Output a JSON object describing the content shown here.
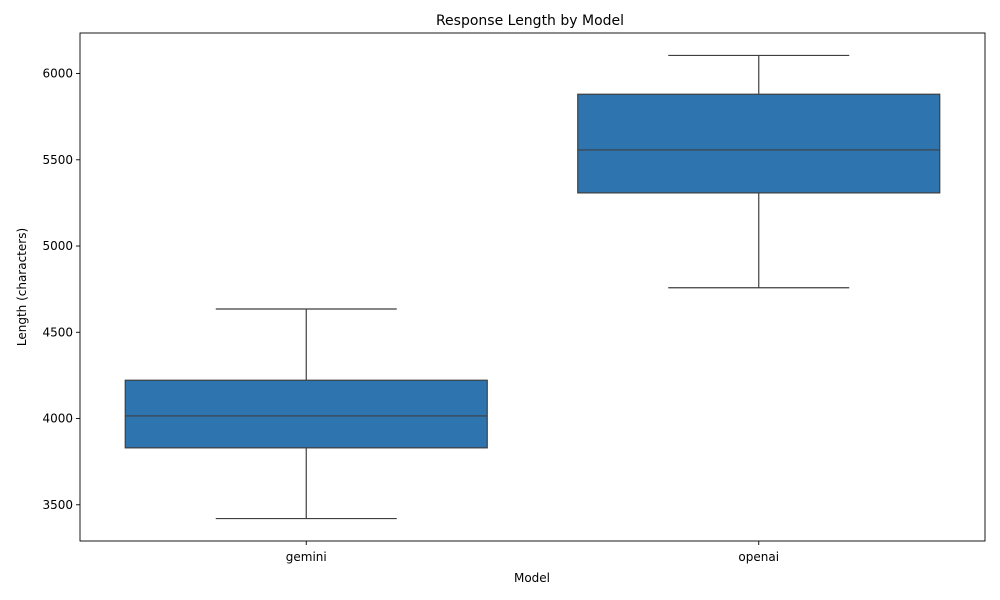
{
  "chart_data": {
    "type": "box",
    "title": "Response Length by Model",
    "xlabel": "Model",
    "ylabel": "Length (characters)",
    "categories": [
      "gemini",
      "openai"
    ],
    "boxes": [
      {
        "category": "gemini",
        "whisker_low": 3420,
        "q1": 3830,
        "median": 4015,
        "q3": 4222,
        "whisker_high": 4635
      },
      {
        "category": "openai",
        "whisker_low": 4758,
        "q1": 5308,
        "median": 5557,
        "q3": 5880,
        "whisker_high": 6105
      }
    ],
    "ylim": [
      3290,
      6235
    ],
    "yticks": [
      3500,
      4000,
      4500,
      5000,
      5500,
      6000
    ],
    "ytick_labels": [
      "3500",
      "4000",
      "4500",
      "5000",
      "5500",
      "6000"
    ],
    "grid": false,
    "box_color": "#2e75b0",
    "line_color": "#3f3f3f"
  }
}
